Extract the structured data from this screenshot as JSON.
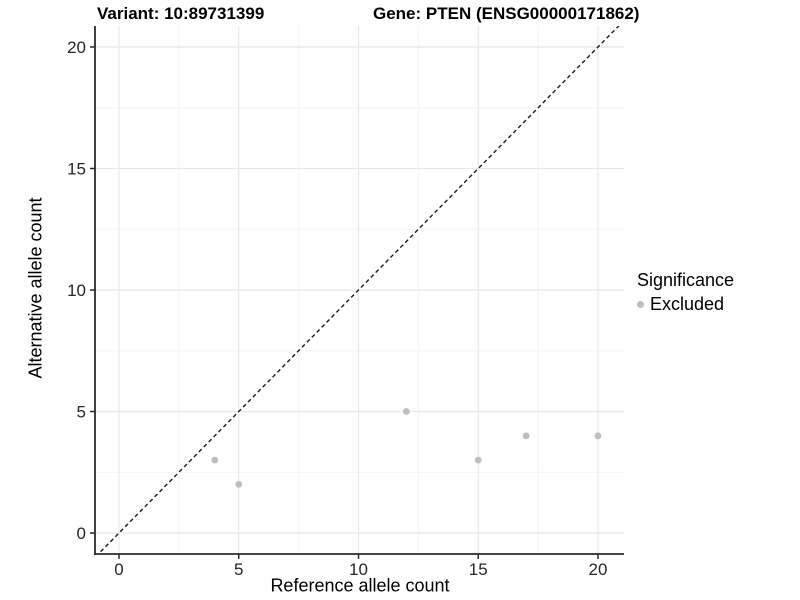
{
  "titles": {
    "variant": "Variant: 10:89731399",
    "gene": "Gene: PTEN (ENSG00000171862)"
  },
  "colors": {
    "background": "#ffffff",
    "text": "#000000",
    "axis": "#2b2b2b",
    "tick_label": "#262626",
    "grid_major": "#e8e8e8",
    "grid_minor": "#f4f4f4",
    "point": "#bebebe",
    "ref_line": "#1a1a1a"
  },
  "chart_data": {
    "type": "scatter",
    "title_left": "Variant: 10:89731399",
    "title_right": "Gene: PTEN (ENSG00000171862)",
    "xlabel": "Reference allele count",
    "ylabel": "Alternative allele count",
    "xlim": [
      -1,
      21
    ],
    "ylim": [
      -1,
      21
    ],
    "xticks": [
      0,
      5,
      10,
      15,
      20
    ],
    "yticks": [
      0,
      5,
      10,
      15,
      20
    ],
    "minor_xticks": [
      2.5,
      7.5,
      12.5,
      17.5
    ],
    "minor_yticks": [
      2.5,
      7.5,
      12.5,
      17.5
    ],
    "grid": true,
    "series": [
      {
        "name": "Excluded",
        "color": "#bebebe",
        "points": [
          [
            4,
            3
          ],
          [
            5,
            2
          ],
          [
            12,
            5
          ],
          [
            15,
            3
          ],
          [
            17,
            4
          ],
          [
            20,
            4
          ]
        ]
      }
    ],
    "reference_line": {
      "type": "identity",
      "style": "dashed",
      "color": "#1a1a1a"
    },
    "legend": {
      "title": "Significance",
      "position": "right",
      "items": [
        {
          "label": "Excluded",
          "color": "#bebebe"
        }
      ]
    }
  }
}
